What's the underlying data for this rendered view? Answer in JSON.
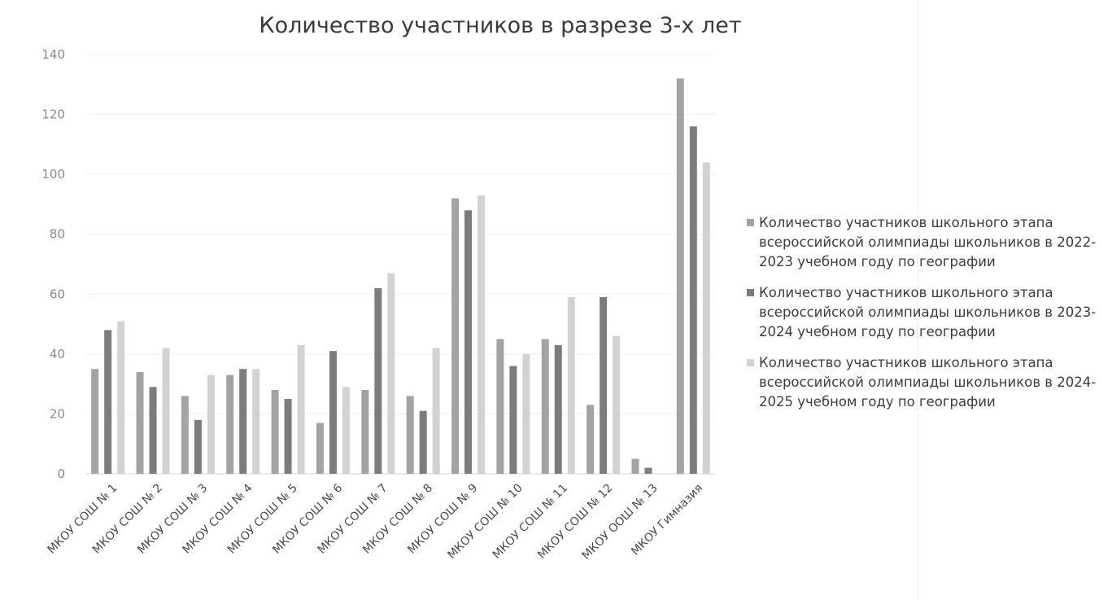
{
  "chart_data": {
    "type": "bar",
    "title": "Количество участников в разрезе 3-х лет",
    "xlabel": "",
    "ylabel": "",
    "ylim": [
      0,
      140
    ],
    "yticks": [
      0,
      20,
      40,
      60,
      80,
      100,
      120,
      140
    ],
    "grid": true,
    "legend_position": "right",
    "categories": [
      "МКОУ СОШ № 1",
      "МКОУ СОШ № 2",
      "МКОУ СОШ № 3",
      "МКОУ СОШ № 4",
      "МКОУ СОШ № 5",
      "МКОУ СОШ № 6",
      "МКОУ СОШ № 7",
      "МКОУ СОШ № 8",
      "МКОУ СОШ № 9",
      "МКОУ СОШ № 10",
      "МКОУ СОШ № 11",
      "МКОУ СОШ № 12",
      "МКОУ ООШ № 13",
      "МКОУ Гимназия"
    ],
    "series": [
      {
        "name": "Количество участников школьного этапа всероссийской олимпиады школьников в 2022-2023 учебном году по географии",
        "color": "#a3a3a3",
        "values": [
          35,
          34,
          26,
          33,
          28,
          17,
          28,
          26,
          92,
          45,
          45,
          23,
          5,
          132
        ]
      },
      {
        "name": "Количество участников школьного этапа всероссийской олимпиады школьников в 2023-2024 учебном году по географии",
        "color": "#7c7c7c",
        "values": [
          48,
          29,
          18,
          35,
          25,
          41,
          62,
          21,
          88,
          36,
          43,
          59,
          2,
          116
        ]
      },
      {
        "name": "Количество участников школьного этапа всероссийской олимпиады школьников в 2024-2025 учебном году по географии",
        "color": "#d2d2d2",
        "values": [
          51,
          42,
          33,
          35,
          43,
          29,
          67,
          42,
          93,
          40,
          59,
          46,
          0,
          104
        ]
      }
    ]
  }
}
